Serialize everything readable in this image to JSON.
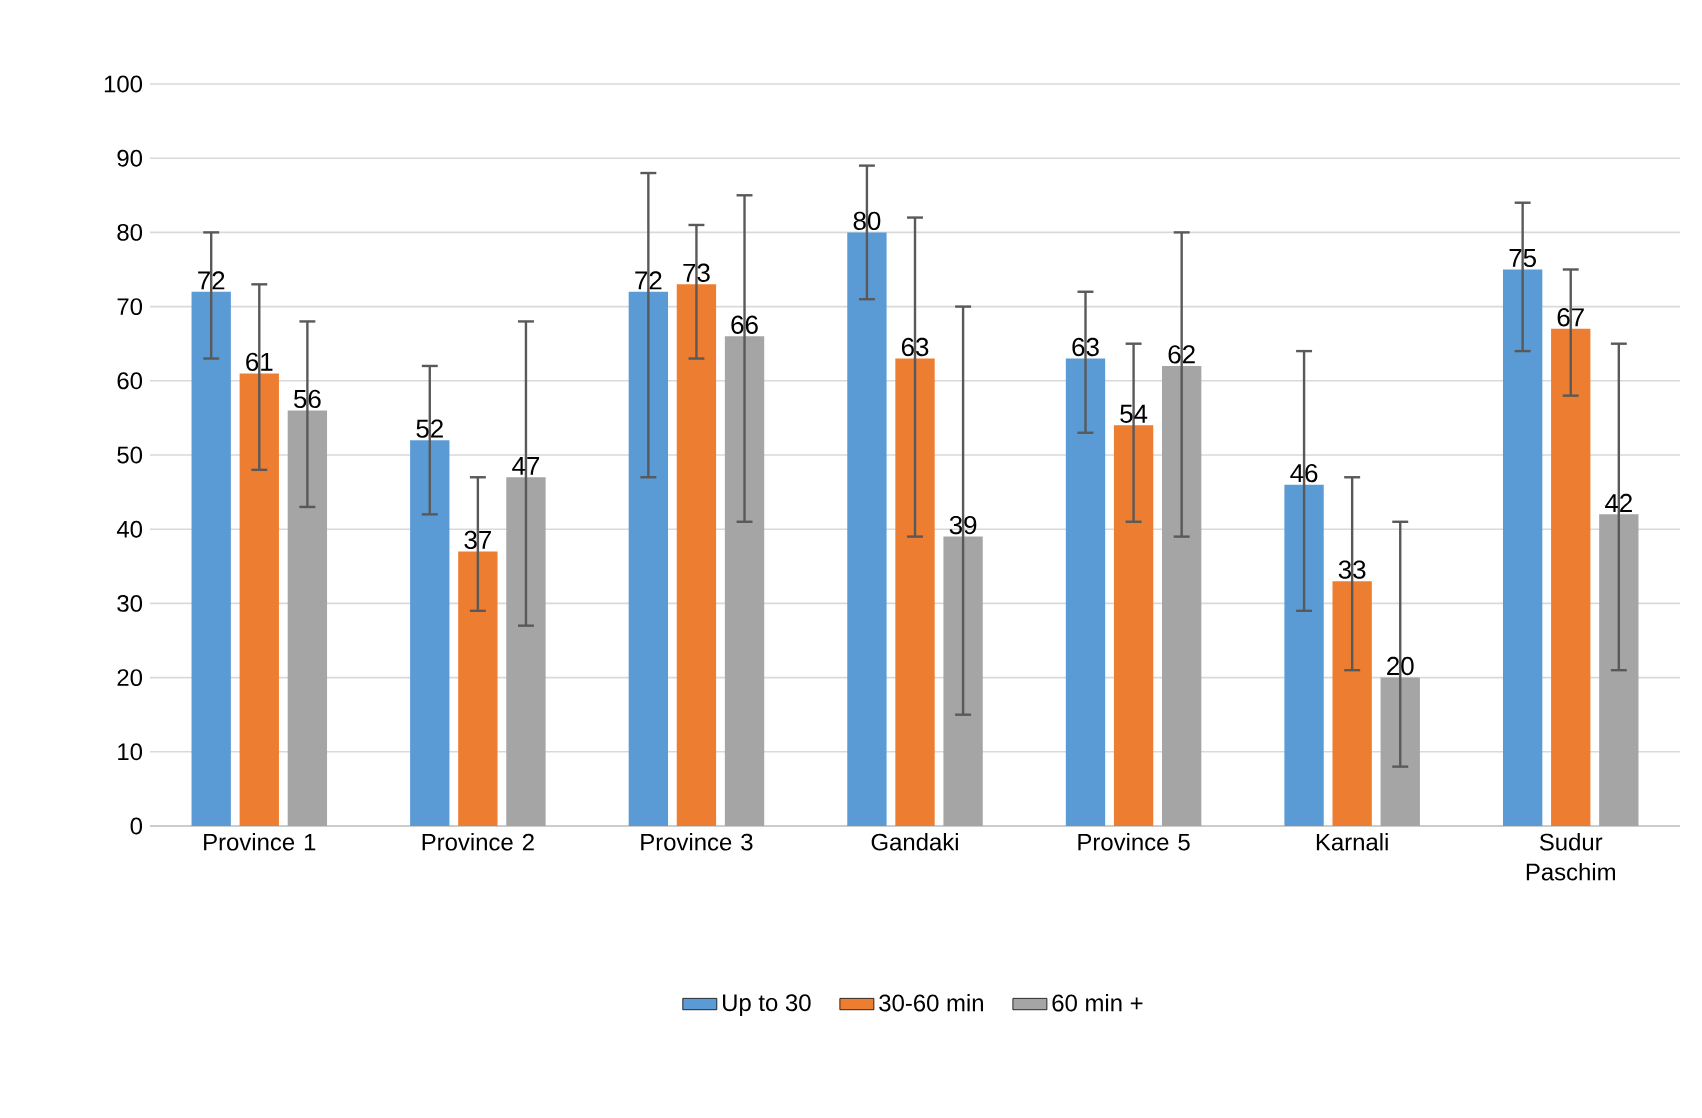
{
  "chart_data": {
    "type": "bar",
    "categories": [
      "Province 1",
      "Province 2",
      "Province 3",
      "Gandaki",
      "Province 5",
      "Karnali",
      "Sudur Paschim"
    ],
    "series": [
      {
        "name": "Up to 30",
        "color": "#5b9bd5",
        "values": [
          72,
          52,
          72,
          80,
          63,
          46,
          75
        ],
        "errors": [
          [
            63,
            80
          ],
          [
            42,
            62
          ],
          [
            47,
            88
          ],
          [
            71,
            89
          ],
          [
            53,
            72
          ],
          [
            29,
            64
          ],
          [
            64,
            84
          ]
        ]
      },
      {
        "name": "30-60 min",
        "color": "#ed7d31",
        "values": [
          61,
          37,
          73,
          63,
          54,
          33,
          67
        ],
        "errors": [
          [
            48,
            73
          ],
          [
            29,
            47
          ],
          [
            63,
            81
          ],
          [
            39,
            82
          ],
          [
            41,
            65
          ],
          [
            21,
            47
          ],
          [
            58,
            75
          ]
        ]
      },
      {
        "name": "60 min +",
        "color": "#a5a5a5",
        "values": [
          56,
          47,
          66,
          39,
          62,
          20,
          42
        ],
        "errors": [
          [
            43,
            68
          ],
          [
            27,
            68
          ],
          [
            41,
            85
          ],
          [
            15,
            70
          ],
          [
            39,
            80
          ],
          [
            8,
            41
          ],
          [
            21,
            65
          ]
        ]
      }
    ],
    "ylim": [
      0,
      100
    ],
    "yticks": [
      0,
      10,
      20,
      30,
      40,
      50,
      60,
      70,
      80,
      90,
      100
    ],
    "grid": "y",
    "legend": "bottom",
    "data_labels": true
  }
}
